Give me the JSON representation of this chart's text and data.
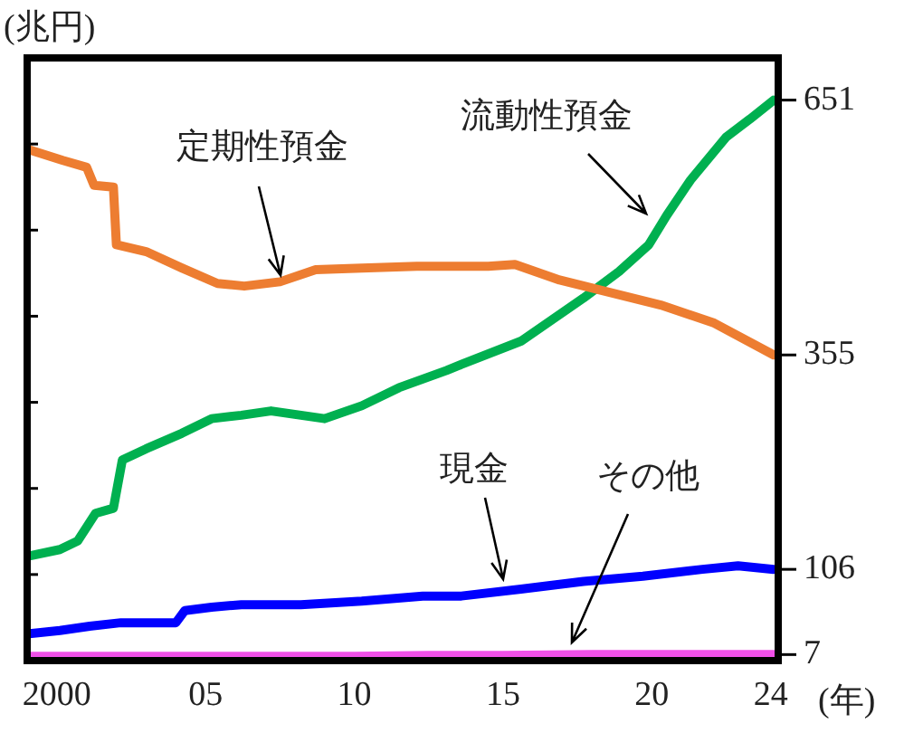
{
  "chart_data": {
    "type": "line",
    "ylabel": "(兆円)",
    "xlabel": "(年)",
    "marker": "none",
    "line_style": "solid",
    "grid": false,
    "legend": false,
    "xlim": [
      1999,
      2024.25
    ],
    "xticks": [
      {
        "value": 2000,
        "label": "2000"
      },
      {
        "value": 2005,
        "label": "05"
      },
      {
        "value": 2010,
        "label": "10"
      },
      {
        "value": 2015,
        "label": "15"
      },
      {
        "value": 2020,
        "label": "20"
      },
      {
        "value": 2024,
        "label": "24"
      }
    ],
    "ylim": [
      0,
      700
    ],
    "yticks": [
      {
        "value": 100,
        "label": null
      },
      {
        "value": 200,
        "label": null
      },
      {
        "value": 300,
        "label": null
      },
      {
        "value": 400,
        "label": null
      },
      {
        "value": 500,
        "label": null
      },
      {
        "value": 600,
        "label": null
      }
    ],
    "tick_labels": "x",
    "series": [
      {
        "name": "定期性預金",
        "color": "#ed7d31",
        "x": [
          1999,
          2000.2,
          2001,
          2001.25,
          2001.9,
          2002,
          2003,
          2004.2,
          2005.4,
          2006.3,
          2007.5,
          2008.7,
          2010.25,
          2012.1,
          2014.5,
          2015.4,
          2016.9,
          2020.3,
          2022.1,
          2024.1
        ],
        "values": [
          594,
          581,
          573,
          552,
          550,
          483,
          475,
          456,
          438,
          435,
          440,
          454,
          456,
          458,
          458,
          460,
          442,
          413,
          392,
          355
        ],
        "value_labels": [
          null,
          null,
          null,
          null,
          null,
          null,
          null,
          null,
          null,
          null,
          null,
          null,
          null,
          null,
          null,
          null,
          null,
          null,
          null,
          "355"
        ]
      },
      {
        "name": "流動性預金",
        "color": "#00b050",
        "x": [
          1999,
          2000.1,
          2000.7,
          2001.3,
          2001.9,
          2002.2,
          2003,
          2004.2,
          2005.2,
          2006.2,
          2007.2,
          2009,
          2010.25,
          2011.5,
          2013.1,
          2013.6,
          2015.6,
          2017.7,
          2018.9,
          2019.9,
          2020.5,
          2021.3,
          2022.5,
          2023.3,
          2024.1
        ],
        "values": [
          121,
          129,
          139,
          171,
          177,
          233,
          246,
          264,
          281,
          285,
          290,
          281,
          296,
          317,
          337,
          344,
          371,
          421,
          452,
          483,
          517,
          558,
          608,
          629,
          651
        ],
        "value_labels": [
          null,
          null,
          null,
          null,
          null,
          null,
          null,
          null,
          null,
          null,
          null,
          null,
          null,
          null,
          null,
          null,
          null,
          null,
          null,
          null,
          null,
          null,
          null,
          null,
          "651"
        ]
      },
      {
        "name": "現金",
        "color": "#0000ff",
        "x": [
          1999,
          2000.1,
          2001.1,
          2002.15,
          2004,
          2004.3,
          2005.2,
          2006.2,
          2008.2,
          2010.25,
          2012.3,
          2013.6,
          2015.6,
          2017.7,
          2019.7,
          2021.7,
          2022.9,
          2024.1
        ],
        "values": [
          31,
          35,
          40,
          44,
          44,
          58,
          62,
          65,
          65,
          69,
          75,
          75,
          83,
          92,
          98,
          106,
          110,
          106
        ],
        "value_labels": [
          null,
          null,
          null,
          null,
          null,
          null,
          null,
          null,
          null,
          null,
          null,
          null,
          null,
          null,
          null,
          null,
          null,
          "106"
        ]
      },
      {
        "name": "その他",
        "color": "#f050e8",
        "x": [
          1999,
          2005,
          2010,
          2012.5,
          2015,
          2018,
          2024.1
        ],
        "values": [
          5,
          5,
          5,
          6,
          6,
          7,
          7
        ],
        "value_labels": [
          null,
          null,
          null,
          null,
          null,
          null,
          "7"
        ]
      }
    ]
  }
}
